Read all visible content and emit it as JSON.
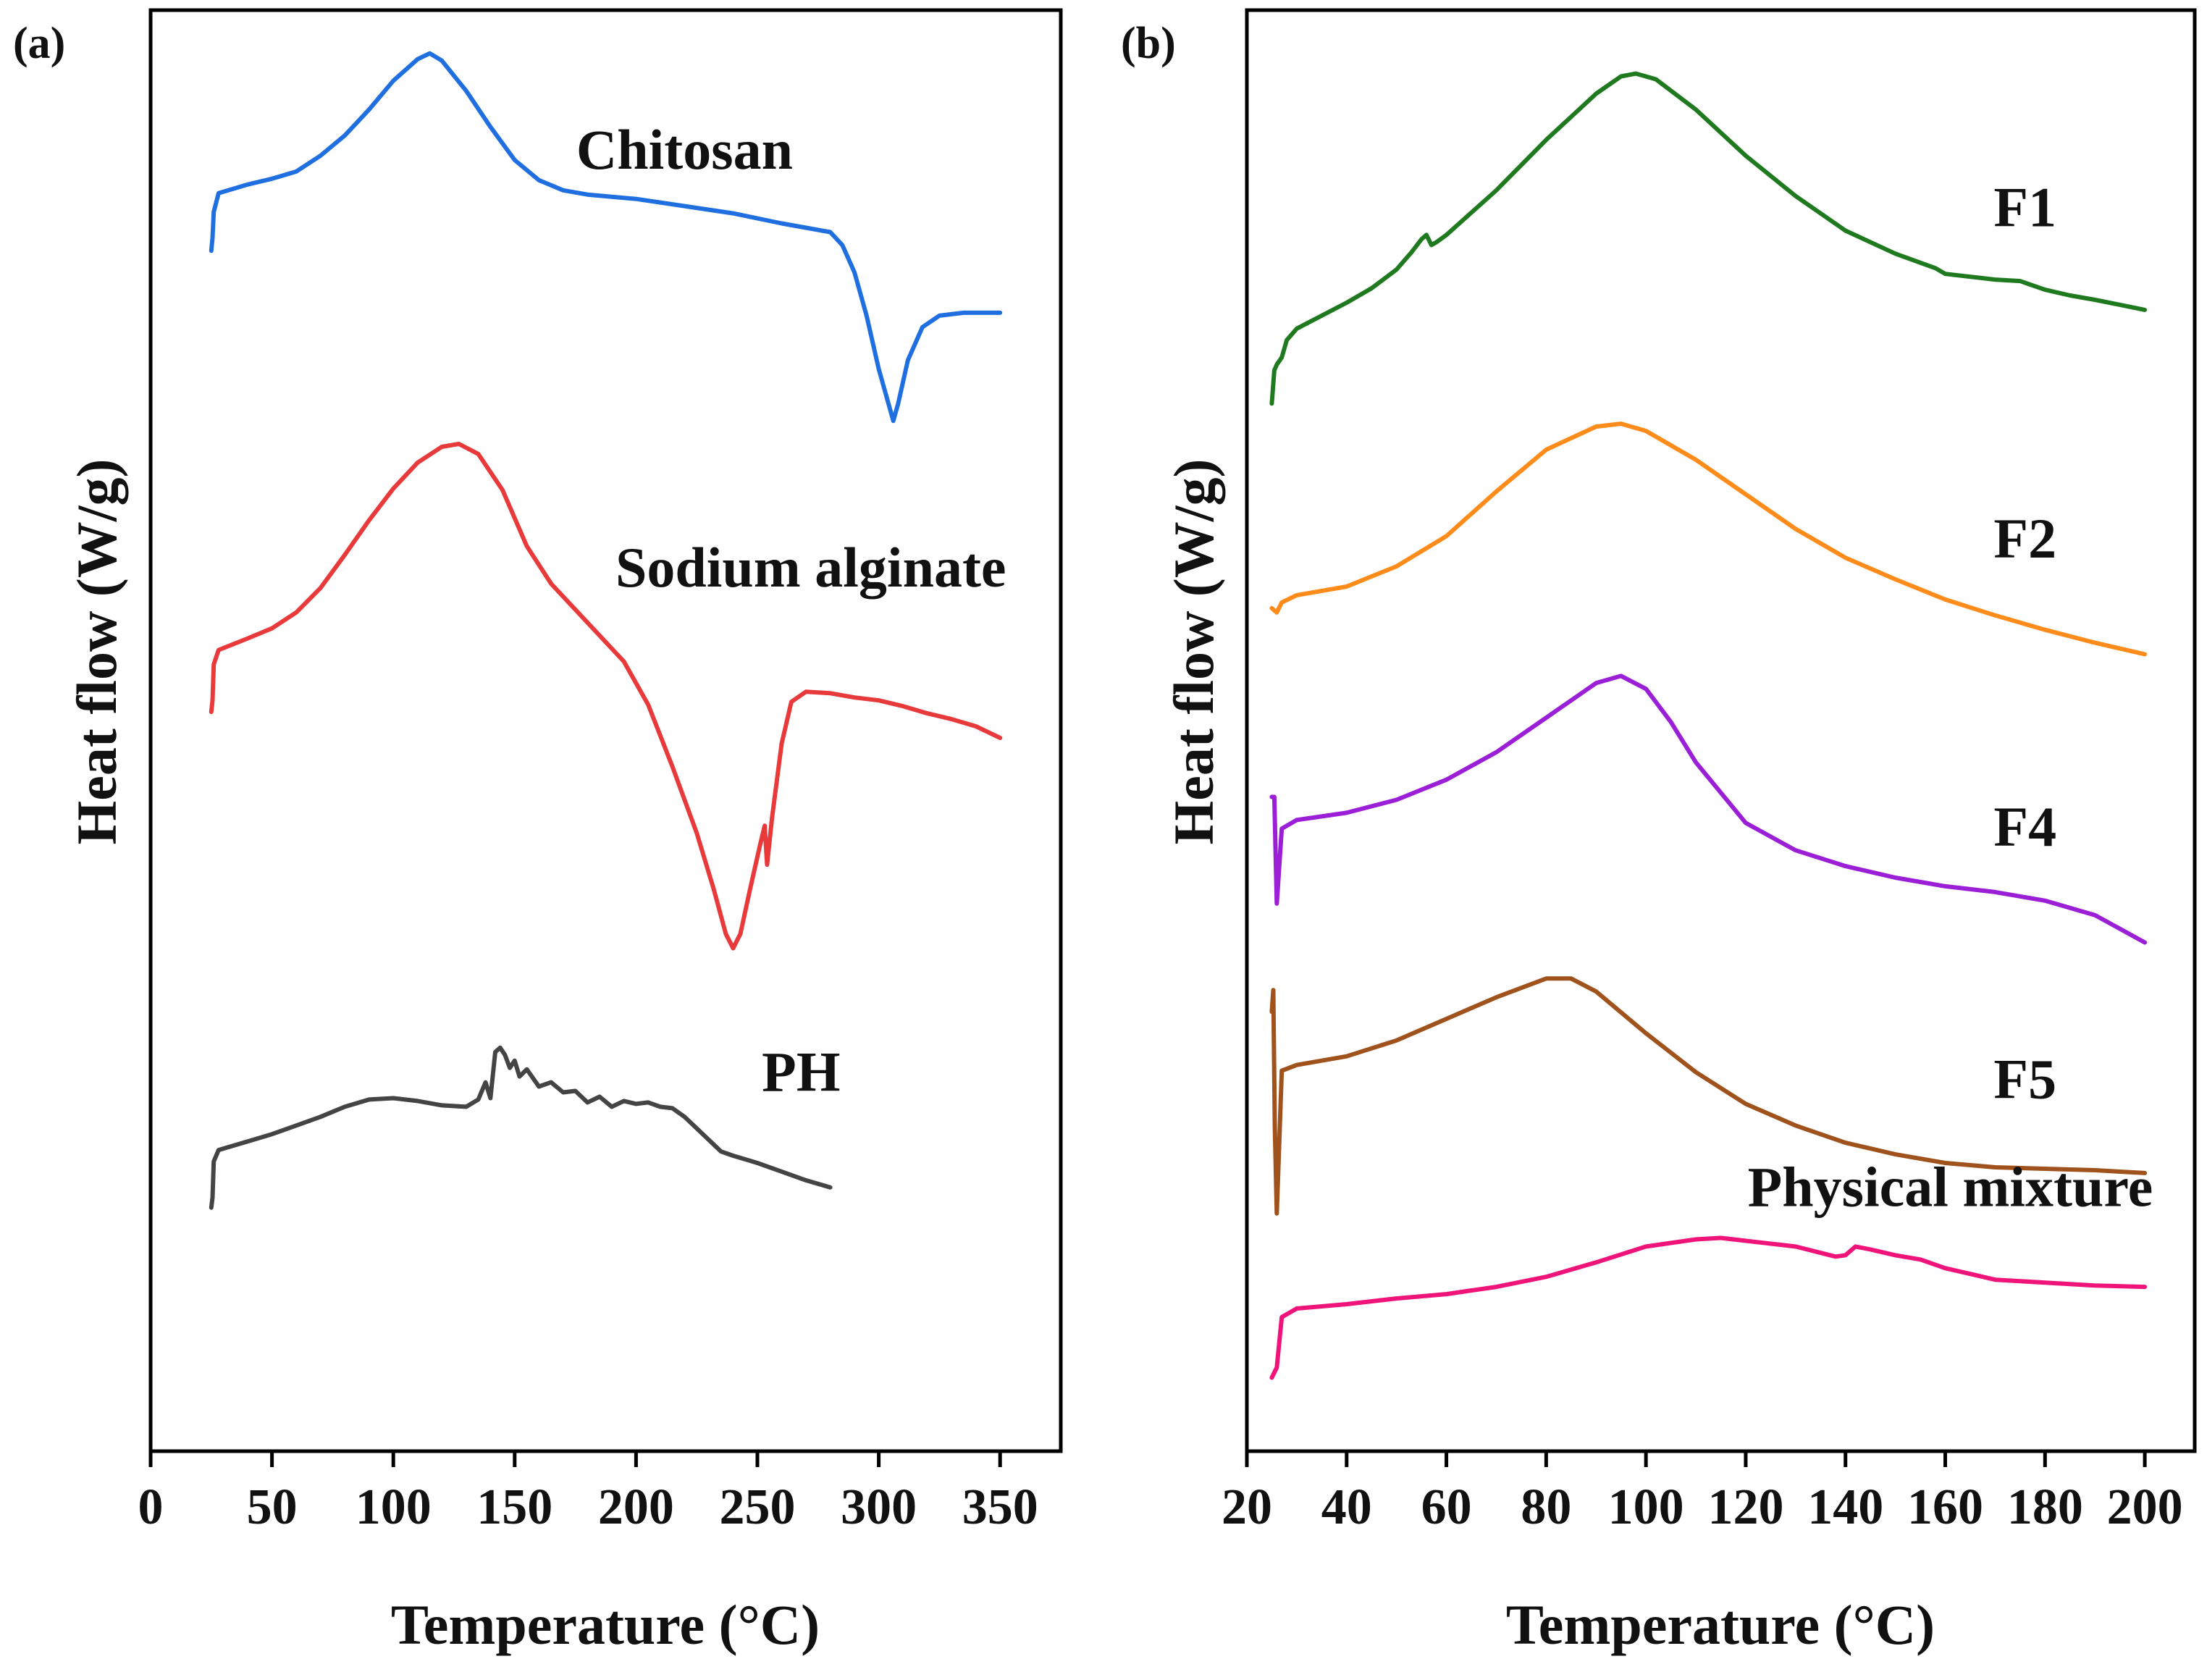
{
  "figure": {
    "panels": [
      {
        "panel_label": "(a)",
        "xlabel": "Temperature (°C)",
        "ylabel": "Heat flow (W/g)"
      },
      {
        "panel_label": "(b)",
        "xlabel": "Temperature (°C)",
        "ylabel": "Heat flow (W/g)"
      }
    ]
  },
  "chart_data": [
    {
      "type": "line",
      "panel": "(a)",
      "title": "",
      "xlabel": "Temperature (°C)",
      "ylabel": "Heat flow (W/g)",
      "xlim": [
        0,
        375
      ],
      "ylim": [
        0,
        100
      ],
      "yticks_shown": false,
      "xticks": [
        0,
        50,
        100,
        150,
        200,
        250,
        300,
        350
      ],
      "grid": false,
      "legend": "inline labels",
      "series": [
        {
          "name": "Chitosan",
          "color": "#1f6fe0",
          "label_at": [
            220,
            89
          ],
          "points": [
            [
              25,
              83.3
            ],
            [
              25.5,
              84.2
            ],
            [
              26,
              86
            ],
            [
              28,
              87.3
            ],
            [
              40,
              87.9
            ],
            [
              50,
              88.3
            ],
            [
              60,
              88.8
            ],
            [
              70,
              89.9
            ],
            [
              80,
              91.3
            ],
            [
              90,
              93.1
            ],
            [
              100,
              95.1
            ],
            [
              110,
              96.6
            ],
            [
              115,
              97.0
            ],
            [
              120,
              96.5
            ],
            [
              130,
              94.4
            ],
            [
              140,
              91.9
            ],
            [
              150,
              89.6
            ],
            [
              160,
              88.2
            ],
            [
              170,
              87.5
            ],
            [
              180,
              87.2
            ],
            [
              200,
              86.9
            ],
            [
              220,
              86.4
            ],
            [
              240,
              85.9
            ],
            [
              260,
              85.2
            ],
            [
              270,
              84.9
            ],
            [
              280,
              84.6
            ],
            [
              285,
              83.7
            ],
            [
              290,
              81.8
            ],
            [
              295,
              78.8
            ],
            [
              300,
              75.1
            ],
            [
              304,
              72.7
            ],
            [
              306,
              71.5
            ],
            [
              308,
              72.7
            ],
            [
              312,
              75.7
            ],
            [
              318,
              78.0
            ],
            [
              325,
              78.8
            ],
            [
              335,
              79.0
            ],
            [
              350,
              79.0
            ]
          ]
        },
        {
          "name": "Sodium alginate",
          "color": "#e83a3a",
          "label_at": [
            272,
            60
          ],
          "points": [
            [
              25,
              51.3
            ],
            [
              25.5,
              52.1
            ],
            [
              26,
              54.6
            ],
            [
              28,
              55.6
            ],
            [
              40,
              56.4
            ],
            [
              50,
              57.1
            ],
            [
              60,
              58.2
            ],
            [
              70,
              59.9
            ],
            [
              80,
              62.2
            ],
            [
              90,
              64.6
            ],
            [
              100,
              66.8
            ],
            [
              110,
              68.6
            ],
            [
              120,
              69.7
            ],
            [
              127,
              69.9
            ],
            [
              135,
              69.2
            ],
            [
              145,
              66.7
            ],
            [
              155,
              62.8
            ],
            [
              165,
              60.2
            ],
            [
              180,
              57.5
            ],
            [
              195,
              54.8
            ],
            [
              205,
              51.8
            ],
            [
              215,
              47.5
            ],
            [
              225,
              42.9
            ],
            [
              232,
              39.0
            ],
            [
              237,
              35.9
            ],
            [
              240,
              34.9
            ],
            [
              243,
              35.9
            ],
            [
              247,
              39.0
            ],
            [
              251,
              42.0
            ],
            [
              253,
              43.4
            ],
            [
              254,
              40.7
            ],
            [
              256,
              43.9
            ],
            [
              260,
              49.1
            ],
            [
              264,
              52.0
            ],
            [
              270,
              52.7
            ],
            [
              280,
              52.6
            ],
            [
              290,
              52.3
            ],
            [
              300,
              52.1
            ],
            [
              310,
              51.7
            ],
            [
              320,
              51.2
            ],
            [
              330,
              50.8
            ],
            [
              340,
              50.3
            ],
            [
              350,
              49.5
            ]
          ]
        },
        {
          "name": "PH",
          "color": "#444444",
          "label_at": [
            268,
            25
          ],
          "points": [
            [
              25,
              16.9
            ],
            [
              25.5,
              17.6
            ],
            [
              26,
              20.1
            ],
            [
              28,
              20.9
            ],
            [
              40,
              21.5
            ],
            [
              50,
              22.0
            ],
            [
              60,
              22.6
            ],
            [
              70,
              23.2
            ],
            [
              80,
              23.9
            ],
            [
              90,
              24.4
            ],
            [
              100,
              24.5
            ],
            [
              110,
              24.3
            ],
            [
              120,
              24.0
            ],
            [
              130,
              23.9
            ],
            [
              135,
              24.4
            ],
            [
              138,
              25.6
            ],
            [
              140,
              24.5
            ],
            [
              142,
              27.7
            ],
            [
              144,
              28.0
            ],
            [
              146,
              27.5
            ],
            [
              148,
              26.6
            ],
            [
              150,
              27.1
            ],
            [
              152,
              26.0
            ],
            [
              155,
              26.5
            ],
            [
              160,
              25.3
            ],
            [
              165,
              25.6
            ],
            [
              170,
              24.9
            ],
            [
              175,
              25.0
            ],
            [
              180,
              24.2
            ],
            [
              185,
              24.6
            ],
            [
              190,
              23.9
            ],
            [
              195,
              24.3
            ],
            [
              200,
              24.1
            ],
            [
              205,
              24.2
            ],
            [
              210,
              23.9
            ],
            [
              215,
              23.8
            ],
            [
              220,
              23.2
            ],
            [
              225,
              22.4
            ],
            [
              230,
              21.6
            ],
            [
              235,
              20.8
            ],
            [
              240,
              20.5
            ],
            [
              250,
              20.0
            ],
            [
              260,
              19.4
            ],
            [
              270,
              18.8
            ],
            [
              280,
              18.3
            ]
          ]
        }
      ]
    },
    {
      "type": "line",
      "panel": "(b)",
      "title": "",
      "xlabel": "Temperature (°C)",
      "ylabel": "Heat flow (W/g)",
      "xlim": [
        20,
        210
      ],
      "ylim": [
        0,
        100
      ],
      "yticks_shown": false,
      "xticks": [
        20,
        40,
        60,
        80,
        100,
        120,
        140,
        160,
        180,
        200
      ],
      "grid": false,
      "legend": "inline labels",
      "series": [
        {
          "name": "F1",
          "color": "#1f7a1f",
          "label_at": [
            176,
            85
          ],
          "points": [
            [
              25,
              72.7
            ],
            [
              25.5,
              75.0
            ],
            [
              26,
              75.4
            ],
            [
              27,
              75.9
            ],
            [
              28,
              77.1
            ],
            [
              30,
              77.9
            ],
            [
              40,
              79.7
            ],
            [
              45,
              80.7
            ],
            [
              50,
              82.0
            ],
            [
              53,
              83.2
            ],
            [
              55,
              84.1
            ],
            [
              56,
              84.4
            ],
            [
              57,
              83.7
            ],
            [
              58,
              83.9
            ],
            [
              60,
              84.4
            ],
            [
              70,
              87.5
            ],
            [
              80,
              91.0
            ],
            [
              90,
              94.2
            ],
            [
              95,
              95.4
            ],
            [
              98,
              95.6
            ],
            [
              102,
              95.2
            ],
            [
              110,
              93.1
            ],
            [
              120,
              89.9
            ],
            [
              130,
              87.1
            ],
            [
              140,
              84.7
            ],
            [
              150,
              83.1
            ],
            [
              158,
              82.1
            ],
            [
              160,
              81.7
            ],
            [
              170,
              81.3
            ],
            [
              175,
              81.2
            ],
            [
              180,
              80.6
            ],
            [
              185,
              80.2
            ],
            [
              190,
              79.9
            ],
            [
              200,
              79.2
            ]
          ]
        },
        {
          "name": "F2",
          "color": "#ff8c1a",
          "label_at": [
            176,
            62
          ],
          "points": [
            [
              25,
              58.5
            ],
            [
              26,
              58.2
            ],
            [
              27,
              58.9
            ],
            [
              30,
              59.4
            ],
            [
              40,
              60.0
            ],
            [
              50,
              61.4
            ],
            [
              60,
              63.5
            ],
            [
              70,
              66.6
            ],
            [
              80,
              69.5
            ],
            [
              90,
              71.1
            ],
            [
              95,
              71.3
            ],
            [
              100,
              70.8
            ],
            [
              110,
              68.8
            ],
            [
              120,
              66.4
            ],
            [
              130,
              64.0
            ],
            [
              140,
              62.0
            ],
            [
              150,
              60.5
            ],
            [
              160,
              59.1
            ],
            [
              170,
              58.0
            ],
            [
              180,
              57.0
            ],
            [
              190,
              56.1
            ],
            [
              200,
              55.3
            ]
          ]
        },
        {
          "name": "F4",
          "color": "#9b1fd6",
          "label_at": [
            176,
            42
          ],
          "points": [
            [
              25,
              45.4
            ],
            [
              25.5,
              45.4
            ],
            [
              26,
              38.0
            ],
            [
              27,
              43.2
            ],
            [
              30,
              43.8
            ],
            [
              40,
              44.3
            ],
            [
              50,
              45.2
            ],
            [
              60,
              46.6
            ],
            [
              70,
              48.5
            ],
            [
              80,
              50.9
            ],
            [
              90,
              53.3
            ],
            [
              95,
              53.8
            ],
            [
              100,
              52.9
            ],
            [
              105,
              50.6
            ],
            [
              110,
              47.8
            ],
            [
              120,
              43.6
            ],
            [
              130,
              41.7
            ],
            [
              140,
              40.6
            ],
            [
              150,
              39.8
            ],
            [
              160,
              39.2
            ],
            [
              170,
              38.8
            ],
            [
              180,
              38.2
            ],
            [
              190,
              37.2
            ],
            [
              200,
              35.3
            ]
          ]
        },
        {
          "name": "F5",
          "color": "#a0521c",
          "label_at": [
            176,
            24.5
          ],
          "points": [
            [
              25,
              30.5
            ],
            [
              25.3,
              32.0
            ],
            [
              25.6,
              22.5
            ],
            [
              26,
              16.5
            ],
            [
              27,
              26.4
            ],
            [
              30,
              26.8
            ],
            [
              40,
              27.4
            ],
            [
              50,
              28.5
            ],
            [
              60,
              30.0
            ],
            [
              70,
              31.5
            ],
            [
              80,
              32.8
            ],
            [
              85,
              32.8
            ],
            [
              90,
              31.9
            ],
            [
              100,
              29.0
            ],
            [
              110,
              26.3
            ],
            [
              120,
              24.1
            ],
            [
              130,
              22.6
            ],
            [
              140,
              21.4
            ],
            [
              150,
              20.6
            ],
            [
              160,
              20.0
            ],
            [
              170,
              19.7
            ],
            [
              180,
              19.6
            ],
            [
              190,
              19.5
            ],
            [
              200,
              19.3
            ]
          ]
        },
        {
          "name": "Physical mixture",
          "color": "#f0147a",
          "label_at": [
            161,
            17
          ],
          "points": [
            [
              25,
              5.1
            ],
            [
              26,
              5.8
            ],
            [
              27,
              9.3
            ],
            [
              30,
              9.9
            ],
            [
              40,
              10.2
            ],
            [
              50,
              10.6
            ],
            [
              60,
              10.9
            ],
            [
              70,
              11.4
            ],
            [
              80,
              12.1
            ],
            [
              90,
              13.1
            ],
            [
              100,
              14.2
            ],
            [
              110,
              14.7
            ],
            [
              115,
              14.8
            ],
            [
              120,
              14.6
            ],
            [
              130,
              14.2
            ],
            [
              138,
              13.5
            ],
            [
              140,
              13.6
            ],
            [
              142,
              14.2
            ],
            [
              145,
              14.0
            ],
            [
              150,
              13.6
            ],
            [
              155,
              13.3
            ],
            [
              160,
              12.7
            ],
            [
              165,
              12.3
            ],
            [
              170,
              11.9
            ],
            [
              180,
              11.7
            ],
            [
              190,
              11.5
            ],
            [
              200,
              11.4
            ]
          ]
        }
      ]
    }
  ]
}
